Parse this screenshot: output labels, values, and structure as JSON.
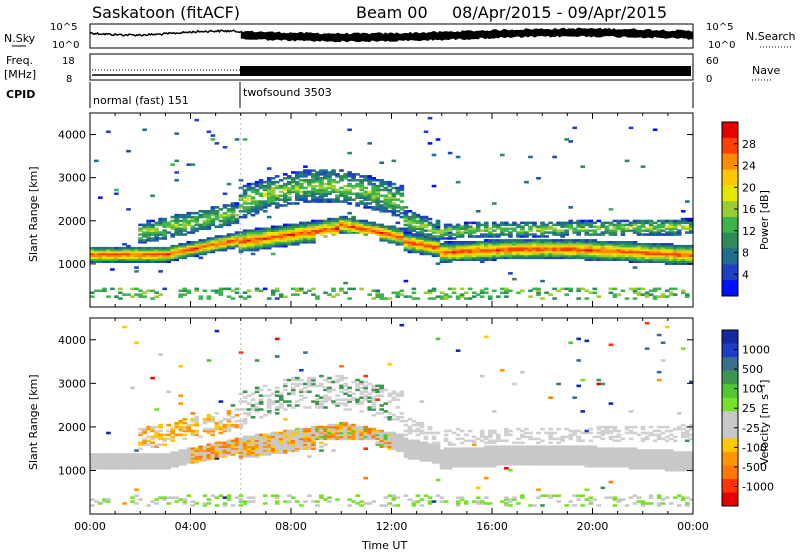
{
  "header": {
    "station": "Saskatoon (fitACF)",
    "beam": "Beam 00",
    "date_range": "08/Apr/2015 - 09/Apr/2015"
  },
  "strips": {
    "nsky_label": "N.Sky",
    "nsearch_label": "N.Search",
    "noise_ticks": [
      "10^5",
      "10^0"
    ],
    "freq_label": "Freq.",
    "freq_unit": "[MHz]",
    "freq_ticks": [
      "18",
      "8"
    ],
    "nave_label": "Nave",
    "nave_ticks": [
      "60",
      "0"
    ],
    "cpid_label": "CPID",
    "cpid_segments": [
      {
        "label": "normal (fast) 151",
        "start_hour": 0,
        "end_hour": 6
      },
      {
        "label": "twofsound 3503",
        "start_hour": 6,
        "end_hour": 24
      }
    ]
  },
  "chart_data": [
    {
      "type": "heatmap",
      "name": "power",
      "ylabel": "Slant Range [km]",
      "xlabel": "",
      "x_range_hours": [
        0,
        24
      ],
      "ylim": [
        0,
        4500
      ],
      "y_ticks": [
        1000,
        2000,
        3000,
        4000
      ],
      "colorbar": {
        "label": "Power [dB]",
        "ticks": [
          "28",
          "24",
          "20",
          "16",
          "12",
          "8",
          "4"
        ],
        "colors": [
          "#e60000",
          "#ff4000",
          "#ff8c00",
          "#ffc800",
          "#e6e600",
          "#9acd32",
          "#3cb44b",
          "#2e8b57",
          "#1e6e8c",
          "#2040c0",
          "#0010ff"
        ]
      }
    },
    {
      "type": "heatmap",
      "name": "velocity",
      "ylabel": "Slant Range [km]",
      "xlabel": "Time UT",
      "x_range_hours": [
        0,
        24
      ],
      "x_ticks": [
        "00:00",
        "04:00",
        "08:00",
        "12:00",
        "16:00",
        "20:00",
        "00:00"
      ],
      "ylim": [
        0,
        4500
      ],
      "y_ticks": [
        1000,
        2000,
        3000,
        4000
      ],
      "colorbar": {
        "label": "Velocity [m s⁻¹]",
        "ticks": [
          "1000",
          "500",
          "100",
          "25",
          "-25",
          "-100",
          "-500",
          "-1000"
        ],
        "colors": [
          "#1428a0",
          "#1e3cc8",
          "#3a6e8c",
          "#3c9650",
          "#50c832",
          "#78e028",
          "#c8c8c8",
          "#c8c8c8",
          "#ffc800",
          "#ff9600",
          "#ff7800",
          "#ff3200",
          "#e60000"
        ]
      }
    }
  ]
}
